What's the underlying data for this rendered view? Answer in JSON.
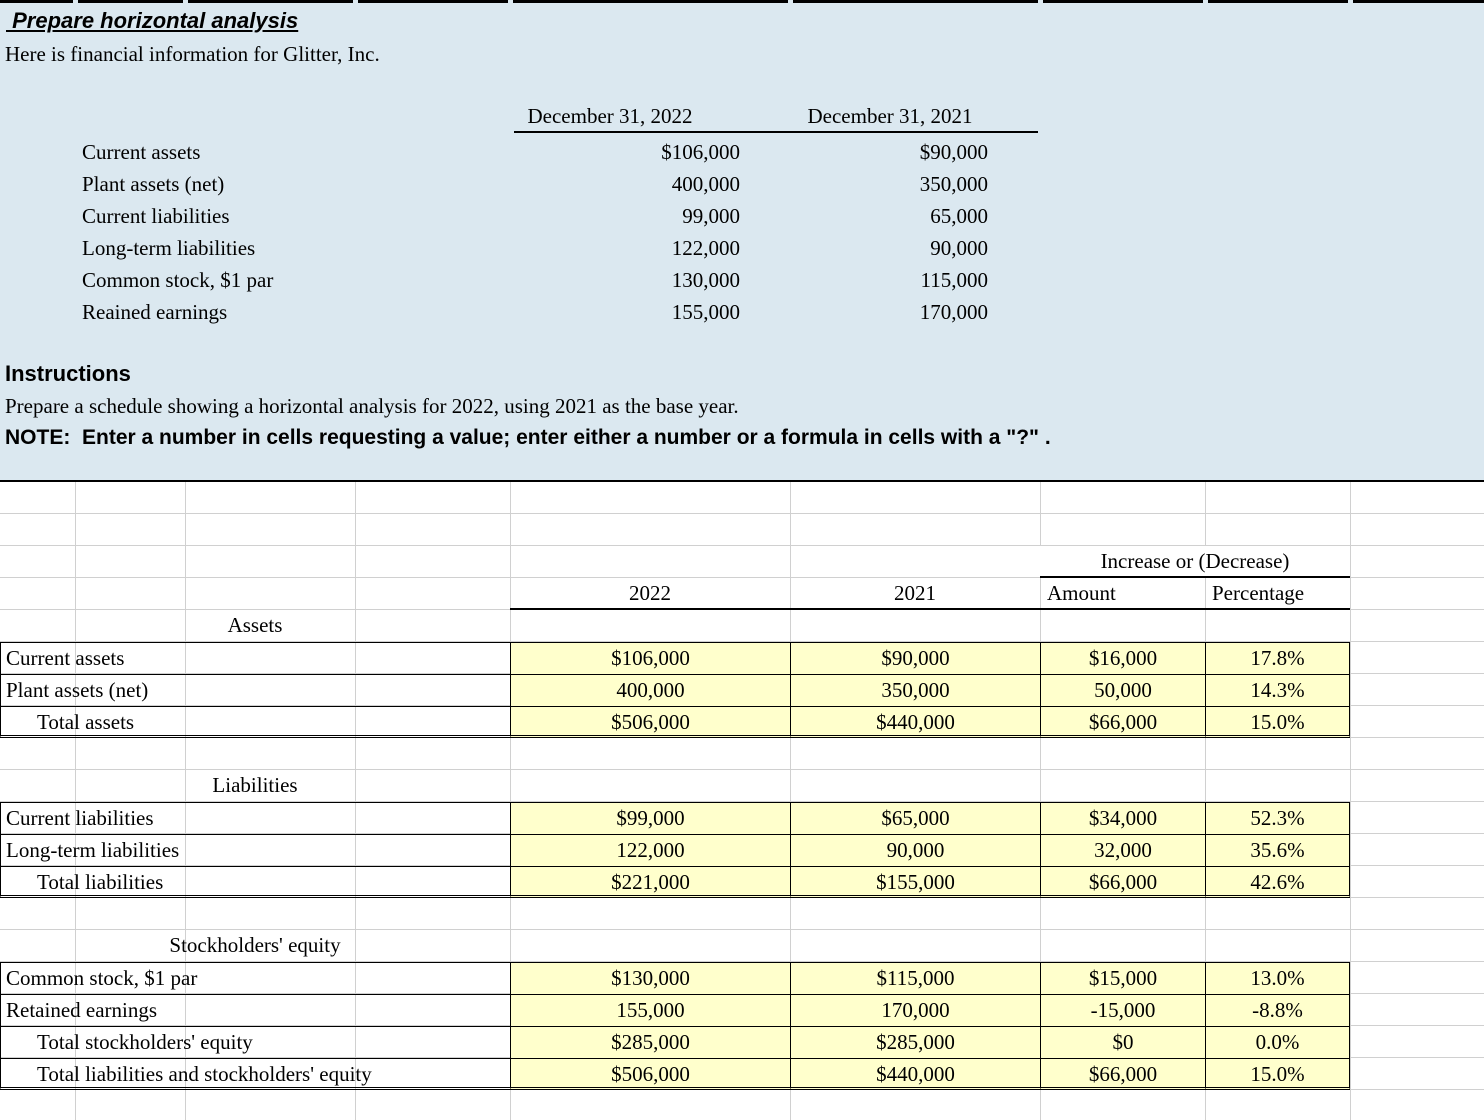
{
  "top": {
    "title": " Prepare horizontal analysis",
    "intro": "Here is financial information for Glitter, Inc.",
    "info_table": {
      "headers": [
        "December 31, 2022",
        "December 31, 2021"
      ],
      "rows": [
        {
          "label": "Current assets",
          "v2022": "$106,000",
          "v2021": "$90,000"
        },
        {
          "label": "Plant assets (net)",
          "v2022": "400,000",
          "v2021": "350,000"
        },
        {
          "label": "Current liabilities",
          "v2022": "99,000",
          "v2021": "65,000"
        },
        {
          "label": "Long-term liabilities",
          "v2022": "122,000",
          "v2021": "90,000"
        },
        {
          "label": "Common stock, $1 par",
          "v2022": "130,000",
          "v2021": "115,000"
        },
        {
          "label": "Reained earnings",
          "v2022": "155,000",
          "v2021": "170,000"
        }
      ]
    },
    "instructions_heading": "Instructions",
    "instructions_text": "Prepare a schedule showing a horizontal analysis for 2022, using 2021 as the base year.",
    "note_text": "NOTE:  Enter a number in cells requesting a value; enter either a number or a formula in cells with a \"?\" ."
  },
  "worksheet": {
    "increase_header": "Increase or (Decrease)",
    "col_headers": {
      "y2022": "2022",
      "y2021": "2021",
      "amount": "Amount",
      "percentage": "Percentage"
    },
    "sections": [
      {
        "title": "Assets",
        "rows": [
          {
            "label": "Current assets",
            "indent": false,
            "v2022": "$106,000",
            "v2021": "$90,000",
            "amount": "$16,000",
            "pct": "17.8%",
            "double_underline": false
          },
          {
            "label": "Plant assets (net)",
            "indent": false,
            "v2022": "400,000",
            "v2021": "350,000",
            "amount": "50,000",
            "pct": "14.3%",
            "double_underline": false
          },
          {
            "label": "Total assets",
            "indent": true,
            "v2022": "$506,000",
            "v2021": "$440,000",
            "amount": "$66,000",
            "pct": "15.0%",
            "double_underline": true
          }
        ]
      },
      {
        "title": "Liabilities",
        "rows": [
          {
            "label": "Current liabilities",
            "indent": false,
            "v2022": "$99,000",
            "v2021": "$65,000",
            "amount": "$34,000",
            "pct": "52.3%",
            "double_underline": false
          },
          {
            "label": "Long-term liabilities",
            "indent": false,
            "v2022": "122,000",
            "v2021": "90,000",
            "amount": "32,000",
            "pct": "35.6%",
            "double_underline": false
          },
          {
            "label": "Total liabilities",
            "indent": true,
            "v2022": "$221,000",
            "v2021": "$155,000",
            "amount": "$66,000",
            "pct": "42.6%",
            "double_underline": true
          }
        ]
      },
      {
        "title": "Stockholders' equity",
        "rows": [
          {
            "label": "Common stock, $1 par",
            "indent": false,
            "v2022": "$130,000",
            "v2021": "$115,000",
            "amount": "$15,000",
            "pct": "13.0%",
            "double_underline": false
          },
          {
            "label": "Retained earnings",
            "indent": false,
            "v2022": "155,000",
            "v2021": "170,000",
            "amount": "-15,000",
            "pct": "-8.8%",
            "double_underline": false
          },
          {
            "label": "Total stockholders' equity",
            "indent": true,
            "v2022": "$285,000",
            "v2021": "$285,000",
            "amount": "$0",
            "pct": "0.0%",
            "double_underline": false
          },
          {
            "label": "Total liabilities and stockholders' equity",
            "indent": true,
            "v2022": "$506,000",
            "v2021": "$440,000",
            "amount": "$66,000",
            "pct": "15.0%",
            "double_underline": true
          }
        ]
      }
    ]
  },
  "colors": {
    "band_bg": "#dbe8f0",
    "cell_fill": "#ffffcc",
    "gridline": "#d0d0d0",
    "ink": "#000000"
  }
}
